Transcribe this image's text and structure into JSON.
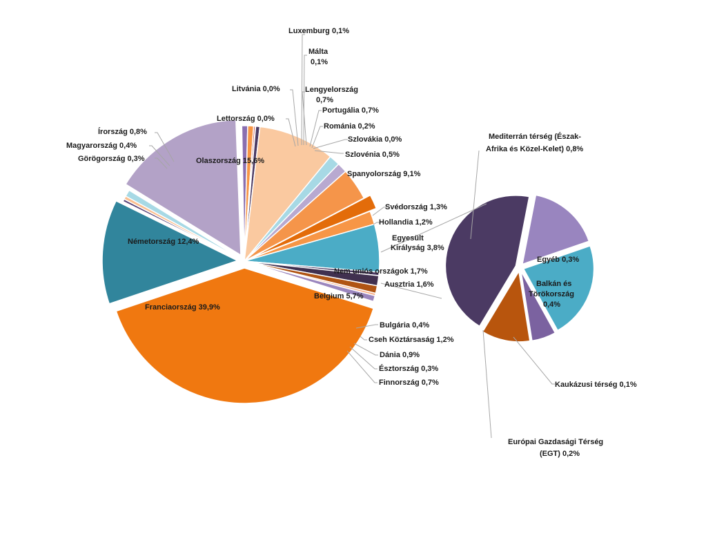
{
  "chart_data": {
    "type": "pie",
    "subtype": "pie-of-pie",
    "title": "",
    "main_series": [
      {
        "label": "Luxemburg 0,1%",
        "value": 0.1,
        "color": "#4bacc6"
      },
      {
        "label": "Málta 0,1%",
        "value": 0.1,
        "color": "#8064a2"
      },
      {
        "label": "Lengyelország 0,7%",
        "value": 0.7,
        "color": "#8a6fb0"
      },
      {
        "label": "Portugália 0,7%",
        "value": 0.7,
        "color": "#f79646"
      },
      {
        "label": "Románia 0,2%",
        "value": 0.2,
        "color": "#c0504d"
      },
      {
        "label": "Szlovákia 0,0%",
        "value": 0.04,
        "color": "#4f81bd"
      },
      {
        "label": "Szlovénia 0,5%",
        "value": 0.5,
        "color": "#4b3a63"
      },
      {
        "label": "Spanyolország 9,1%",
        "value": 9.1,
        "color": "#fac9a0"
      },
      {
        "label": "Svédország 1,3%",
        "value": 1.3,
        "color": "#a7d9e5"
      },
      {
        "label": "Hollandia 1,2%",
        "value": 1.2,
        "color": "#b8a9d0"
      },
      {
        "label": "Egyesült Királyság 3,8%",
        "value": 3.8,
        "color": "#f5954a"
      },
      {
        "label": "Nem uniós országok 1,7%",
        "value": 1.7,
        "color": "#e36c0a",
        "exploded": true
      },
      {
        "label": "Ausztria 1,6%",
        "value": 1.6,
        "color": "#f79646"
      },
      {
        "label": "Belgium 5,7%",
        "value": 5.7,
        "color": "#4bacc6"
      },
      {
        "label": "Bulgária 0,4%",
        "value": 0.4,
        "color": "#4b3a63"
      },
      {
        "label": "Cseh Köztársaság 1,2%",
        "value": 1.2,
        "color": "#40304f"
      },
      {
        "label": "Dánia 0,9%",
        "value": 0.9,
        "color": "#b05413"
      },
      {
        "label": "Észtország 0,3%",
        "value": 0.3,
        "color": "#f8b08a"
      },
      {
        "label": "Finnország 0,7%",
        "value": 0.7,
        "color": "#9b86be"
      },
      {
        "label": "Franciaország 39,9%",
        "value": 39.9,
        "color": "#f07810",
        "exploded": true
      },
      {
        "label": "Németország 12,4%",
        "value": 12.4,
        "color": "#31859c",
        "exploded": true
      },
      {
        "label": "Görögország 0,3%",
        "value": 0.3,
        "color": "#5a4478"
      },
      {
        "label": "Magyarország 0,4%",
        "value": 0.4,
        "color": "#fbbf8f"
      },
      {
        "label": "Írország 0,8%",
        "value": 0.8,
        "color": "#a7d9e5"
      },
      {
        "label": "Olaszország 15,6%",
        "value": 15.6,
        "color": "#b3a2c7",
        "exploded": true
      },
      {
        "label": "Lettország 0,0%",
        "value": 0.04,
        "color": "#8064a2"
      },
      {
        "label": "Litvánia 0,0%",
        "value": 0.04,
        "color": "#c0504d"
      }
    ],
    "secondary_series": [
      {
        "label": "Mediterrán térség (Észak-Afrika és Közel-Kelet) 0,8%",
        "value": 0.8,
        "color": "#4b3a63"
      },
      {
        "label": "Egyéb 0,3%",
        "value": 0.3,
        "color": "#9985bf"
      },
      {
        "label": "Balkán és Törökország 0,4%",
        "value": 0.4,
        "color": "#4bacc6"
      },
      {
        "label": "Kaukázusi térség 0,1%",
        "value": 0.1,
        "color": "#7b62a0"
      },
      {
        "label": "Európai Gazdasági Térség (EGT) 0,2%",
        "value": 0.2,
        "color": "#b8550d"
      }
    ]
  },
  "labels": {
    "luxemburg": "Luxemburg 0,1%",
    "malta_1": "Málta",
    "malta_2": "0,1%",
    "lengyel_1": "Lengyelország",
    "lengyel_2": "0,7%",
    "portugalia": "Portugália 0,7%",
    "romania": "Románia 0,2%",
    "szlovakia": "Szlovákia 0,0%",
    "szlovenia": "Szlovénia 0,5%",
    "spanyol": "Spanyolország 9,1%",
    "svedorszag": "Svédország 1,3%",
    "hollandia": "Hollandia 1,2%",
    "egyesult_1": "Egyesült",
    "egyesult_2": "Királyság 3,8%",
    "nem_unios": "Nem uniós országok 1,7%",
    "ausztria": "Ausztria 1,6%",
    "belgium": "Belgium 5,7%",
    "bulgaria": "Bulgária 0,4%",
    "cseh": "Cseh Köztársaság 1,2%",
    "dania": "Dánia 0,9%",
    "esztorszag": "Észtország 0,3%",
    "finnorszag": "Finnország 0,7%",
    "franciaorszag": "Franciaország 39,9%",
    "nemetorszag": "Németország 12,4%",
    "gorogorszag": "Görögország 0,3%",
    "magyarorszag": "Magyarország 0,4%",
    "irorszag": "Írország 0,8%",
    "olaszorszag": "Olaszország 15,6%",
    "lettorszag": "Lettország 0,0%",
    "litvania": "Litvánia 0,0%",
    "mediterran_1": "Mediterrán térség (Észak-",
    "mediterran_2": "Afrika és Közel-Kelet) 0,8%",
    "egyeb": "Egyéb 0,3%",
    "balkan_1": "Balkán és",
    "balkan_2": "Törökország",
    "balkan_3": "0,4%",
    "kaukazusi": "Kaukázusi térség 0,1%",
    "egt_1": "Európai Gazdasági Térség",
    "egt_2": "(EGT) 0,2%"
  }
}
